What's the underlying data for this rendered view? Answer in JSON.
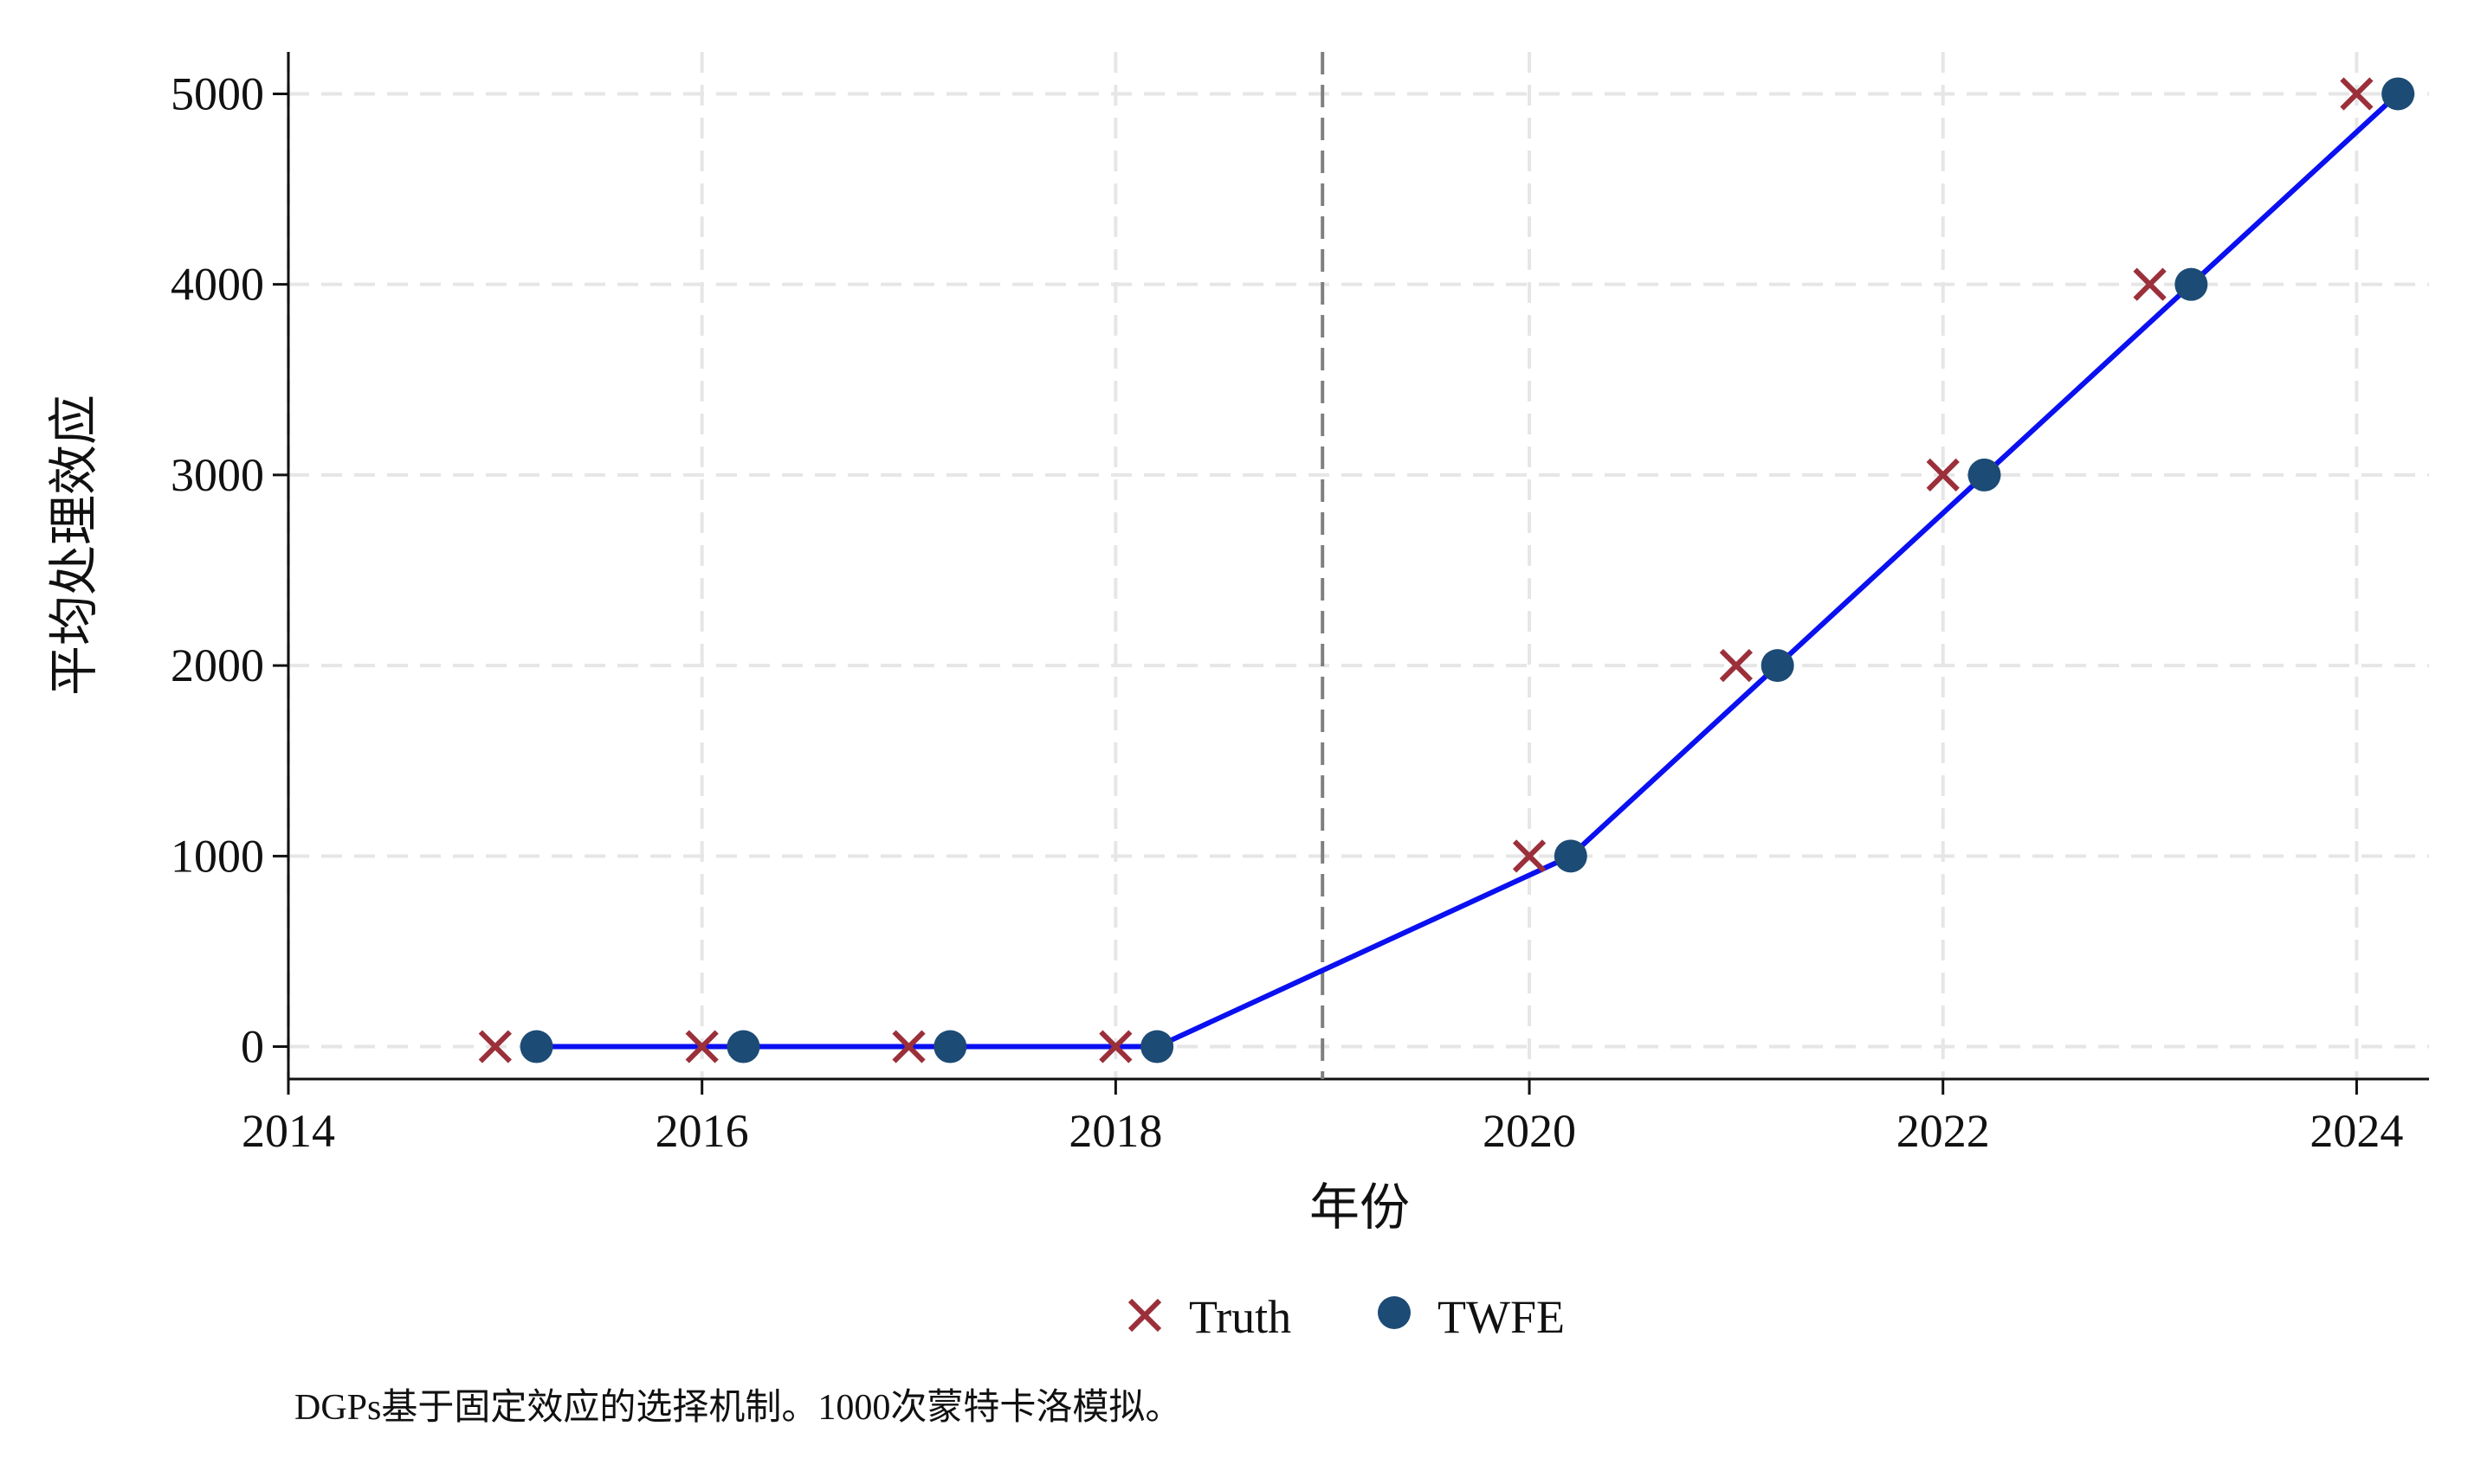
{
  "chart_data": {
    "type": "scatter",
    "xlabel": "年份",
    "ylabel": "平均处理效应",
    "xlim": [
      2014,
      2024.35
    ],
    "ylim": [
      -170,
      5220
    ],
    "x_ticks": [
      2014,
      2016,
      2018,
      2020,
      2022,
      2024
    ],
    "y_ticks": [
      0,
      1000,
      2000,
      3000,
      4000,
      5000
    ],
    "grid": true,
    "treatment_line_x": 2019,
    "legend": {
      "placement": "bottom-center"
    },
    "series": [
      {
        "name": "Truth",
        "marker": "x",
        "color": "#9b2f3a",
        "x": [
          2015,
          2016,
          2017,
          2018,
          2020,
          2021,
          2022,
          2023,
          2024
        ],
        "y": [
          0,
          0,
          0,
          0,
          1000,
          2000,
          3000,
          4000,
          5000
        ]
      },
      {
        "name": "TWFE",
        "marker": "circle",
        "color": "#1c4b75",
        "line_color": "#0a10f0",
        "x": [
          2015.2,
          2016.2,
          2017.2,
          2018.2,
          2020.2,
          2021.2,
          2022.2,
          2023.2,
          2024.2
        ],
        "y": [
          0,
          0,
          0,
          0,
          1000,
          2000,
          3000,
          4000,
          5000
        ]
      }
    ],
    "note": "DGPs基于固定效应的选择机制。1000次蒙特卡洛模拟。"
  }
}
